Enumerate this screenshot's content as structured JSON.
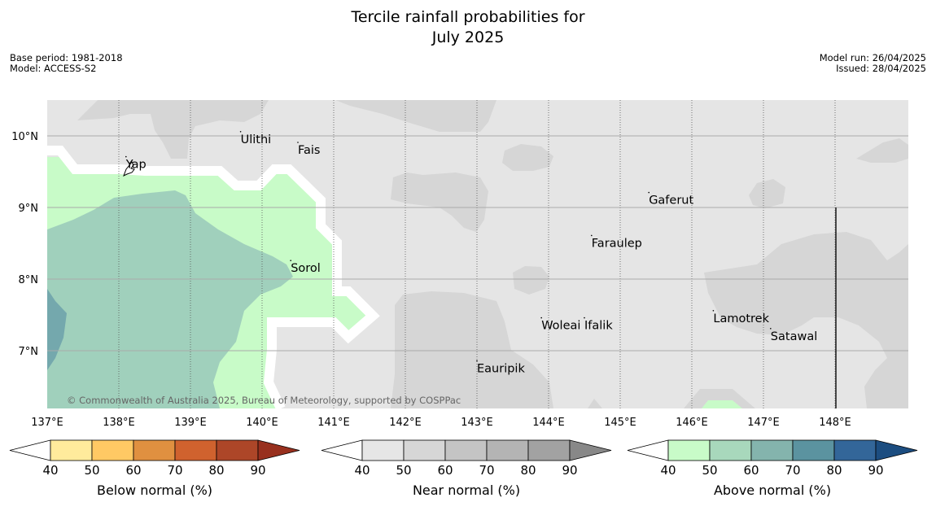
{
  "title_line1": "Tercile rainfall probabilities for",
  "title_line2": "July 2025",
  "meta_left": [
    "Base period: 1981-2018",
    "Model: ACCESS-S2"
  ],
  "meta_right": [
    "Model run: 26/04/2025",
    "Issued: 28/04/2025"
  ],
  "copyright": "© Commonwealth of Australia 2025, Bureau of Meteorology, supported by COSPPac",
  "map": {
    "lon_range": [
      137,
      149
    ],
    "lat_range": [
      6.2,
      10.5
    ],
    "lon_ticks": [
      "137°E",
      "138°E",
      "139°E",
      "140°E",
      "141°E",
      "142°E",
      "143°E",
      "144°E",
      "145°E",
      "146°E",
      "147°E",
      "148°E"
    ],
    "lat_ticks": [
      "10°N",
      "9°N",
      "8°N",
      "7°N"
    ],
    "colors": {
      "background": "#e5e5e5",
      "near_normal_50": "#d6d6d6",
      "above_normal_40": "#c8fbc8",
      "above_normal_50": "#a0d0bc",
      "above_normal_60": "#74a8ad",
      "gridline": "#aaaaaa"
    },
    "places": [
      {
        "name": "Yap",
        "lon": 138.1,
        "lat": 9.55
      },
      {
        "name": "Ulithi",
        "lon": 139.7,
        "lat": 9.9
      },
      {
        "name": "Fais",
        "lon": 140.5,
        "lat": 9.75
      },
      {
        "name": "Sorol",
        "lon": 140.4,
        "lat": 8.1
      },
      {
        "name": "Gaferut",
        "lon": 145.4,
        "lat": 9.05
      },
      {
        "name": "Faraulep",
        "lon": 144.6,
        "lat": 8.45
      },
      {
        "name": "Woleai",
        "lon": 143.9,
        "lat": 7.3
      },
      {
        "name": "Ifalik",
        "lon": 144.5,
        "lat": 7.3
      },
      {
        "name": "Lamotrek",
        "lon": 146.3,
        "lat": 7.4
      },
      {
        "name": "Satawal",
        "lon": 147.1,
        "lat": 7.15
      },
      {
        "name": "Eauripik",
        "lon": 143.0,
        "lat": 6.7
      }
    ]
  },
  "colorbars": [
    {
      "label": "Below normal (%)",
      "ticks": [
        "40",
        "50",
        "60",
        "70",
        "80",
        "90"
      ],
      "colors": [
        "#ffeb9c",
        "#ffc964",
        "#e09040",
        "#d0622e",
        "#ad4628",
        "#98301e"
      ]
    },
    {
      "label": "Near normal (%)",
      "ticks": [
        "40",
        "50",
        "60",
        "70",
        "80",
        "90"
      ],
      "colors": [
        "#e6e6e6",
        "#d6d6d6",
        "#c4c4c4",
        "#b4b4b4",
        "#a2a2a2",
        "#888888"
      ]
    },
    {
      "label": "Above normal (%)",
      "ticks": [
        "40",
        "50",
        "60",
        "70",
        "80",
        "90"
      ],
      "colors": [
        "#c8fbc8",
        "#a8d8bc",
        "#84b4ad",
        "#5b93a0",
        "#336699",
        "#1c4d80"
      ]
    }
  ]
}
